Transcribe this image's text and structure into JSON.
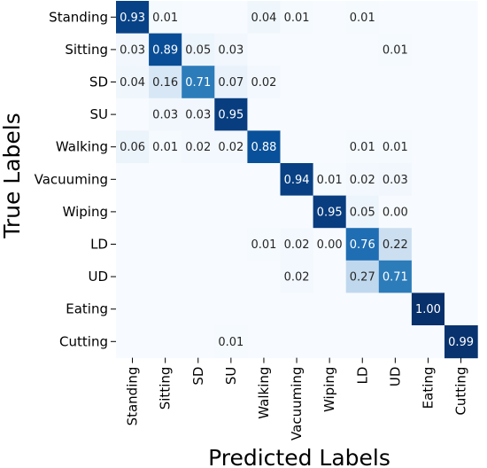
{
  "chart_data": {
    "type": "heatmap",
    "title": "",
    "xlabel": "Predicted Labels",
    "ylabel": "True Labels",
    "x_categories": [
      "Standing",
      "Sitting",
      "SD",
      "SU",
      "Walking",
      "Vacuuming",
      "Wiping",
      "LD",
      "UD",
      "Eating",
      "Cutting"
    ],
    "y_categories": [
      "Standing",
      "Sitting",
      "SD",
      "SU",
      "Walking",
      "Vacuuming",
      "Wiping",
      "LD",
      "UD",
      "Eating",
      "Cutting"
    ],
    "colormap": "Blues",
    "value_range": [
      0,
      1
    ],
    "cells": [
      {
        "row": 0,
        "col": 0,
        "value": 0.93,
        "label": "0.93"
      },
      {
        "row": 0,
        "col": 1,
        "value": 0.01,
        "label": "0.01"
      },
      {
        "row": 0,
        "col": 4,
        "value": 0.04,
        "label": "0.04"
      },
      {
        "row": 0,
        "col": 5,
        "value": 0.01,
        "label": "0.01"
      },
      {
        "row": 0,
        "col": 7,
        "value": 0.01,
        "label": "0.01"
      },
      {
        "row": 1,
        "col": 0,
        "value": 0.03,
        "label": "0.03"
      },
      {
        "row": 1,
        "col": 1,
        "value": 0.89,
        "label": "0.89"
      },
      {
        "row": 1,
        "col": 2,
        "value": 0.05,
        "label": "0.05"
      },
      {
        "row": 1,
        "col": 3,
        "value": 0.03,
        "label": "0.03"
      },
      {
        "row": 1,
        "col": 8,
        "value": 0.01,
        "label": "0.01"
      },
      {
        "row": 2,
        "col": 0,
        "value": 0.04,
        "label": "0.04"
      },
      {
        "row": 2,
        "col": 1,
        "value": 0.16,
        "label": "0.16"
      },
      {
        "row": 2,
        "col": 2,
        "value": 0.71,
        "label": "0.71"
      },
      {
        "row": 2,
        "col": 3,
        "value": 0.07,
        "label": "0.07"
      },
      {
        "row": 2,
        "col": 4,
        "value": 0.02,
        "label": "0.02"
      },
      {
        "row": 3,
        "col": 1,
        "value": 0.03,
        "label": "0.03"
      },
      {
        "row": 3,
        "col": 2,
        "value": 0.03,
        "label": "0.03"
      },
      {
        "row": 3,
        "col": 3,
        "value": 0.95,
        "label": "0.95"
      },
      {
        "row": 4,
        "col": 0,
        "value": 0.06,
        "label": "0.06"
      },
      {
        "row": 4,
        "col": 1,
        "value": 0.01,
        "label": "0.01"
      },
      {
        "row": 4,
        "col": 2,
        "value": 0.02,
        "label": "0.02"
      },
      {
        "row": 4,
        "col": 3,
        "value": 0.02,
        "label": "0.02"
      },
      {
        "row": 4,
        "col": 4,
        "value": 0.88,
        "label": "0.88"
      },
      {
        "row": 4,
        "col": 7,
        "value": 0.01,
        "label": "0.01"
      },
      {
        "row": 4,
        "col": 8,
        "value": 0.01,
        "label": "0.01"
      },
      {
        "row": 5,
        "col": 5,
        "value": 0.94,
        "label": "0.94"
      },
      {
        "row": 5,
        "col": 6,
        "value": 0.01,
        "label": "0.01"
      },
      {
        "row": 5,
        "col": 7,
        "value": 0.02,
        "label": "0.02"
      },
      {
        "row": 5,
        "col": 8,
        "value": 0.03,
        "label": "0.03"
      },
      {
        "row": 6,
        "col": 6,
        "value": 0.95,
        "label": "0.95"
      },
      {
        "row": 6,
        "col": 7,
        "value": 0.05,
        "label": "0.05"
      },
      {
        "row": 6,
        "col": 8,
        "value": 0.0,
        "label": "0.00"
      },
      {
        "row": 7,
        "col": 4,
        "value": 0.01,
        "label": "0.01"
      },
      {
        "row": 7,
        "col": 5,
        "value": 0.02,
        "label": "0.02"
      },
      {
        "row": 7,
        "col": 6,
        "value": 0.0,
        "label": "0.00"
      },
      {
        "row": 7,
        "col": 7,
        "value": 0.76,
        "label": "0.76"
      },
      {
        "row": 7,
        "col": 8,
        "value": 0.22,
        "label": "0.22"
      },
      {
        "row": 8,
        "col": 5,
        "value": 0.02,
        "label": "0.02"
      },
      {
        "row": 8,
        "col": 7,
        "value": 0.27,
        "label": "0.27"
      },
      {
        "row": 8,
        "col": 8,
        "value": 0.71,
        "label": "0.71"
      },
      {
        "row": 9,
        "col": 9,
        "value": 1.0,
        "label": "1.00"
      },
      {
        "row": 10,
        "col": 3,
        "value": 0.01,
        "label": "0.01"
      },
      {
        "row": 10,
        "col": 10,
        "value": 0.99,
        "label": "0.99"
      }
    ]
  }
}
